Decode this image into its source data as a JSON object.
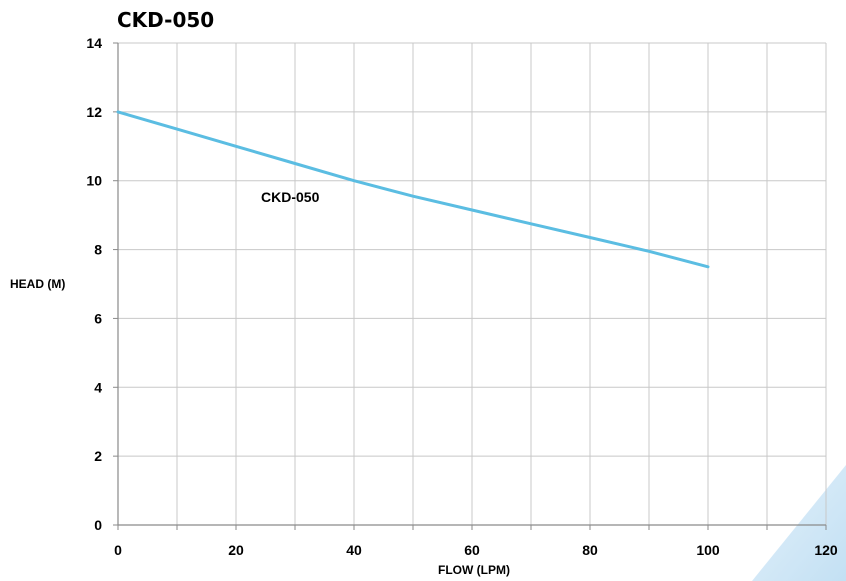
{
  "chart_data": {
    "type": "line",
    "title": "CKD-050",
    "xlabel": "FLOW (LPM)",
    "ylabel": "HEAD (M)",
    "xlim": [
      0,
      120
    ],
    "ylim": [
      0,
      14
    ],
    "xticks": [
      "0",
      "20",
      "40",
      "60",
      "80",
      "100",
      "120"
    ],
    "yticks": [
      "0",
      "2",
      "4",
      "6",
      "8",
      "10",
      "12",
      "14"
    ],
    "grid": true,
    "series": [
      {
        "name": "CKD-050",
        "color": "#5bbde2",
        "x": [
          0,
          10,
          20,
          30,
          40,
          50,
          60,
          70,
          80,
          90,
          100
        ],
        "y": [
          12.0,
          11.5,
          11.0,
          10.5,
          10.0,
          9.55,
          9.15,
          8.75,
          8.35,
          7.95,
          7.5
        ]
      }
    ]
  }
}
